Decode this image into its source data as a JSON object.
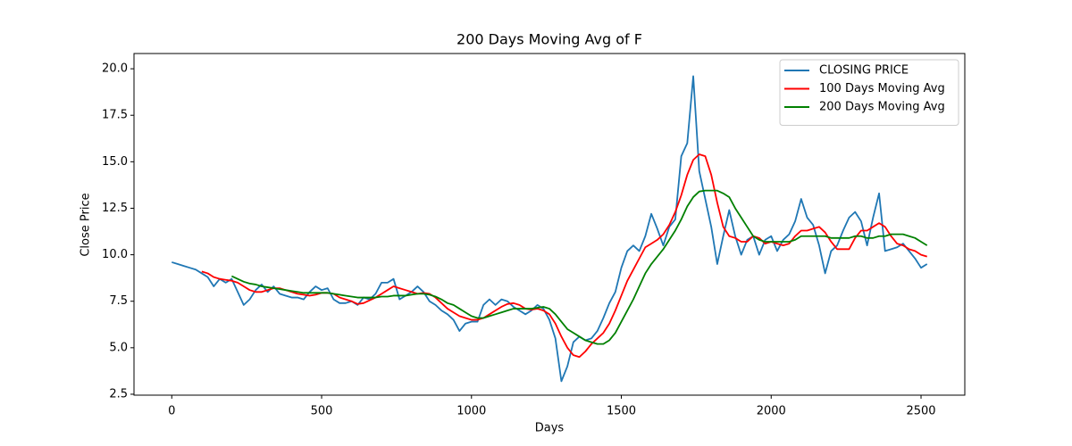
{
  "chart_data": {
    "type": "line",
    "title": "200 Days Moving Avg of F",
    "xlabel": "Days",
    "ylabel": "Close Price",
    "legend": "upper right",
    "xlim": [
      -126,
      2646
    ],
    "ylim": [
      2.45,
      20.82
    ],
    "xticks": [
      0,
      500,
      1000,
      1500,
      2000,
      2500
    ],
    "yticks": [
      2.5,
      {
        "value": 5,
        "label": "5.0"
      },
      7.5,
      {
        "value": 10,
        "label": "10.0"
      },
      12.5,
      {
        "value": 15,
        "label": "15.0"
      },
      17.5,
      {
        "value": 20,
        "label": "20.0"
      }
    ],
    "x": [
      0,
      20,
      40,
      60,
      80,
      100,
      120,
      140,
      160,
      180,
      200,
      220,
      240,
      260,
      280,
      300,
      320,
      340,
      360,
      380,
      400,
      420,
      440,
      460,
      480,
      500,
      520,
      540,
      560,
      580,
      600,
      620,
      640,
      660,
      680,
      700,
      720,
      740,
      760,
      780,
      800,
      820,
      840,
      860,
      880,
      900,
      920,
      940,
      960,
      980,
      1000,
      1020,
      1040,
      1060,
      1080,
      1100,
      1120,
      1140,
      1160,
      1180,
      1200,
      1220,
      1240,
      1260,
      1280,
      1300,
      1320,
      1340,
      1360,
      1380,
      1400,
      1420,
      1440,
      1460,
      1480,
      1500,
      1520,
      1540,
      1560,
      1580,
      1600,
      1620,
      1640,
      1660,
      1680,
      1700,
      1720,
      1740,
      1760,
      1780,
      1800,
      1820,
      1840,
      1860,
      1880,
      1900,
      1920,
      1940,
      1960,
      1980,
      2000,
      2020,
      2040,
      2060,
      2080,
      2100,
      2120,
      2140,
      2160,
      2180,
      2200,
      2220,
      2240,
      2260,
      2280,
      2300,
      2320,
      2340,
      2360,
      2380,
      2400,
      2420,
      2440,
      2460,
      2480,
      2500,
      2520
    ],
    "series": [
      {
        "name": "CLOSING PRICE",
        "color": "#1f77b4",
        "values": [
          9.6,
          9.5,
          9.4,
          9.3,
          9.2,
          9.0,
          8.8,
          8.3,
          8.7,
          8.5,
          8.7,
          8.0,
          7.3,
          7.6,
          8.1,
          8.4,
          8.0,
          8.3,
          7.9,
          7.8,
          7.7,
          7.7,
          7.6,
          8.0,
          8.3,
          8.1,
          8.2,
          7.6,
          7.4,
          7.4,
          7.5,
          7.3,
          7.7,
          7.6,
          7.9,
          8.5,
          8.5,
          8.7,
          7.6,
          7.8,
          8.0,
          8.3,
          8.0,
          7.5,
          7.3,
          7.0,
          6.8,
          6.5,
          5.9,
          6.3,
          6.4,
          6.4,
          7.3,
          7.6,
          7.3,
          7.6,
          7.5,
          7.2,
          7.0,
          6.8,
          7.0,
          7.3,
          7.1,
          6.5,
          5.5,
          3.2,
          4.0,
          5.3,
          5.6,
          5.4,
          5.5,
          5.9,
          6.6,
          7.4,
          8.0,
          9.3,
          10.2,
          10.5,
          10.2,
          11.0,
          12.2,
          11.4,
          10.5,
          11.5,
          11.9,
          15.3,
          16.0,
          19.6,
          14.5,
          13.0,
          11.5,
          9.5,
          11.0,
          12.4,
          11.0,
          10.0,
          10.8,
          11.0,
          10.0,
          10.8,
          11.0,
          10.2,
          10.8,
          11.1,
          11.8,
          13.0,
          12.0,
          11.6,
          10.5,
          9.0,
          10.2,
          10.5,
          11.3,
          12.0,
          12.3,
          11.8,
          10.5,
          12.0,
          13.3,
          10.2,
          10.3,
          10.4,
          10.6,
          10.2,
          9.8,
          9.3,
          9.5
        ]
      },
      {
        "name": "100 Days Moving Avg",
        "color": "#ff0000",
        "values": [
          null,
          null,
          null,
          null,
          null,
          9.1,
          9.0,
          8.8,
          8.7,
          8.65,
          8.6,
          8.5,
          8.3,
          8.1,
          8.0,
          8.0,
          8.1,
          8.2,
          8.2,
          8.1,
          8.0,
          7.9,
          7.85,
          7.8,
          7.85,
          7.95,
          7.95,
          7.9,
          7.7,
          7.6,
          7.5,
          7.35,
          7.4,
          7.55,
          7.7,
          7.9,
          8.1,
          8.3,
          8.2,
          8.1,
          8.0,
          7.9,
          7.95,
          7.9,
          7.7,
          7.4,
          7.1,
          6.9,
          6.7,
          6.6,
          6.5,
          6.5,
          6.6,
          6.8,
          7.0,
          7.2,
          7.35,
          7.4,
          7.3,
          7.1,
          7.05,
          7.1,
          7.0,
          6.8,
          6.3,
          5.6,
          5.0,
          4.6,
          4.5,
          4.8,
          5.2,
          5.5,
          5.8,
          6.3,
          7.0,
          7.8,
          8.6,
          9.2,
          9.8,
          10.4,
          10.6,
          10.8,
          11.1,
          11.6,
          12.3,
          13.2,
          14.3,
          15.1,
          15.4,
          15.3,
          14.3,
          12.8,
          11.5,
          11.0,
          10.9,
          10.7,
          10.7,
          11.0,
          10.9,
          10.6,
          10.7,
          10.6,
          10.5,
          10.6,
          11.0,
          11.3,
          11.3,
          11.4,
          11.5,
          11.2,
          10.7,
          10.3,
          10.3,
          10.3,
          10.9,
          11.3,
          11.3,
          11.5,
          11.7,
          11.5,
          11.0,
          10.6,
          10.5,
          10.3,
          10.2,
          10.0,
          9.9
        ]
      },
      {
        "name": "200 Days Moving Avg",
        "color": "#008000",
        "values": [
          null,
          null,
          null,
          null,
          null,
          null,
          null,
          null,
          null,
          null,
          8.85,
          8.7,
          8.55,
          8.45,
          8.4,
          8.3,
          8.25,
          8.2,
          8.15,
          8.1,
          8.05,
          8.0,
          7.95,
          7.95,
          7.95,
          7.95,
          7.95,
          7.9,
          7.85,
          7.8,
          7.75,
          7.7,
          7.7,
          7.7,
          7.7,
          7.75,
          7.75,
          7.8,
          7.8,
          7.8,
          7.85,
          7.9,
          7.9,
          7.85,
          7.75,
          7.6,
          7.4,
          7.3,
          7.1,
          6.9,
          6.7,
          6.6,
          6.6,
          6.7,
          6.8,
          6.9,
          7.0,
          7.1,
          7.1,
          7.1,
          7.1,
          7.15,
          7.2,
          7.1,
          6.8,
          6.4,
          6.0,
          5.8,
          5.6,
          5.4,
          5.3,
          5.2,
          5.2,
          5.4,
          5.8,
          6.4,
          7.0,
          7.6,
          8.3,
          9.0,
          9.5,
          9.9,
          10.3,
          10.8,
          11.3,
          11.9,
          12.6,
          13.1,
          13.4,
          13.45,
          13.45,
          13.45,
          13.3,
          13.1,
          12.5,
          12.0,
          11.5,
          11.0,
          10.8,
          10.7,
          10.7,
          10.7,
          10.7,
          10.7,
          10.8,
          11.0,
          11.0,
          11.0,
          11.0,
          11.0,
          10.9,
          10.9,
          10.9,
          10.9,
          11.0,
          11.0,
          10.9,
          10.9,
          11.0,
          11.0,
          11.1,
          11.1,
          11.1,
          11.0,
          10.9,
          10.7,
          10.5
        ]
      }
    ]
  }
}
